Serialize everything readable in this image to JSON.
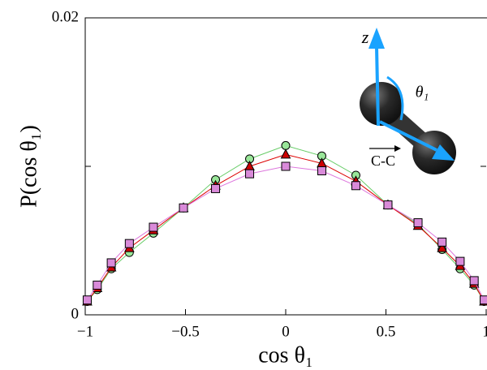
{
  "chart_data": {
    "type": "line",
    "xlabel": "cos θ₁",
    "ylabel": "P(cos θ₁)",
    "x": [
      -0.99,
      -0.94,
      -0.87,
      -0.78,
      -0.66,
      -0.51,
      -0.35,
      -0.18,
      0,
      0.18,
      0.35,
      0.51,
      0.66,
      0.78,
      0.87,
      0.94,
      0.99
    ],
    "series": [
      {
        "color": "#66cc66",
        "marker": "circle",
        "fill": "#99e699",
        "values": [
          0.0009,
          0.0017,
          0.0031,
          0.0042,
          0.0055,
          0.0072,
          0.0091,
          0.0105,
          0.0114,
          0.0107,
          0.0094,
          0.0074,
          0.0061,
          0.0044,
          0.0031,
          0.002,
          0.0009
        ]
      },
      {
        "color": "#dd0000",
        "marker": "triangle",
        "fill": "#cc0000",
        "values": [
          0.0009,
          0.0018,
          0.0032,
          0.0045,
          0.0057,
          0.0072,
          0.0087,
          0.01,
          0.0108,
          0.0102,
          0.009,
          0.0074,
          0.006,
          0.0045,
          0.0033,
          0.0021,
          0.0009
        ]
      },
      {
        "color": "#dd77dd",
        "marker": "square",
        "fill": "#d98ad9",
        "values": [
          0.001,
          0.002,
          0.0035,
          0.0048,
          0.0059,
          0.0072,
          0.0085,
          0.0095,
          0.01,
          0.0097,
          0.0087,
          0.0074,
          0.0062,
          0.0049,
          0.0036,
          0.0023,
          0.001
        ]
      }
    ],
    "xlim": [
      -1,
      1
    ],
    "ylim": [
      0,
      0.02
    ],
    "xticks": [
      {
        "value": -1,
        "label": "−1"
      },
      {
        "value": -0.5,
        "label": "−0.5"
      },
      0,
      0.5,
      1
    ],
    "yticks": [
      0,
      {
        "value": 0.01,
        "label": null
      },
      0.02
    ],
    "annotations": {
      "z": "z",
      "theta": "θ₁",
      "bond": "C-C"
    }
  }
}
